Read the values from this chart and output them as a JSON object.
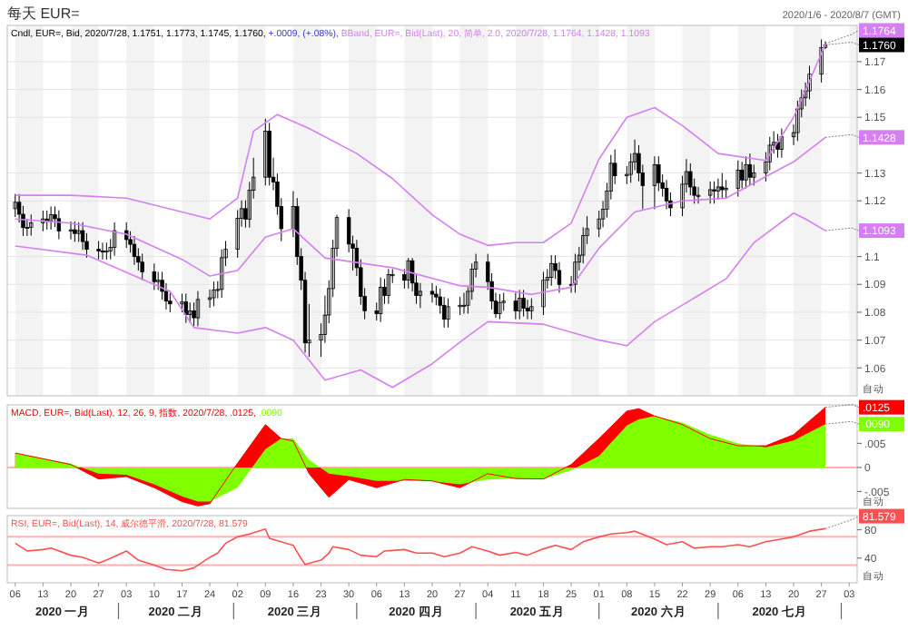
{
  "chart_data": [
    {
      "type": "candlestick",
      "title": "每天 EUR=",
      "subtitle": "2020/1/6 - 2020/8/7 (GMT)",
      "legend": "top left",
      "grid": true,
      "tick_labels": "y",
      "xlim": [
        "2020-01-04",
        "2020-08-05"
      ],
      "ylim": [
        1.05,
        1.183
      ],
      "yticks": [
        1.06,
        1.07,
        1.08,
        1.09,
        1.1,
        1.12,
        1.13,
        1.15,
        1.16,
        1.17
      ],
      "annotations": [
        "自动",
        "+.0009, (+.08%),",
        {
          "text": "1.1764",
          "x": "2020-07-28",
          "y": 1.1764
        },
        {
          "text": "1.1760",
          "x": "2020-07-28",
          "y": 1.176
        },
        {
          "text": "1.1428",
          "x": "2020-07-28",
          "y": 1.1428
        },
        {
          "text": "1.1093",
          "x": "2020-07-28",
          "y": 1.1093
        }
      ],
      "series": [
        {
          "name": "Cndl, EUR=, Bid, 2020/7/28, 1.1751, 1.1773, 1.1745, 1.1760,",
          "color": "#000000",
          "x": [
            "2020-01-06",
            "2020-01-07",
            "2020-01-08",
            "2020-01-09",
            "2020-01-10",
            "2020-01-13",
            "2020-01-14",
            "2020-01-15",
            "2020-01-16",
            "2020-01-17",
            "2020-01-20",
            "2020-01-21",
            "2020-01-22",
            "2020-01-23",
            "2020-01-24",
            "2020-01-27",
            "2020-01-28",
            "2020-01-29",
            "2020-01-30",
            "2020-01-31",
            "2020-02-03",
            "2020-02-04",
            "2020-02-05",
            "2020-02-06",
            "2020-02-07",
            "2020-02-10",
            "2020-02-11",
            "2020-02-12",
            "2020-02-13",
            "2020-02-14",
            "2020-02-17",
            "2020-02-18",
            "2020-02-19",
            "2020-02-20",
            "2020-02-21",
            "2020-02-24",
            "2020-02-25",
            "2020-02-26",
            "2020-02-27",
            "2020-02-28",
            "2020-03-02",
            "2020-03-03",
            "2020-03-04",
            "2020-03-05",
            "2020-03-06",
            "2020-03-09",
            "2020-03-10",
            "2020-03-11",
            "2020-03-12",
            "2020-03-13",
            "2020-03-16",
            "2020-03-17",
            "2020-03-18",
            "2020-03-19",
            "2020-03-20",
            "2020-03-23",
            "2020-03-24",
            "2020-03-25",
            "2020-03-26",
            "2020-03-27",
            "2020-03-30",
            "2020-03-31",
            "2020-04-01",
            "2020-04-02",
            "2020-04-03",
            "2020-04-06",
            "2020-04-07",
            "2020-04-08",
            "2020-04-09",
            "2020-04-10",
            "2020-04-13",
            "2020-04-14",
            "2020-04-15",
            "2020-04-16",
            "2020-04-17",
            "2020-04-20",
            "2020-04-21",
            "2020-04-22",
            "2020-04-23",
            "2020-04-24",
            "2020-04-27",
            "2020-04-28",
            "2020-04-29",
            "2020-04-30",
            "2020-05-01",
            "2020-05-04",
            "2020-05-05",
            "2020-05-06",
            "2020-05-07",
            "2020-05-08",
            "2020-05-11",
            "2020-05-12",
            "2020-05-13",
            "2020-05-14",
            "2020-05-15",
            "2020-05-18",
            "2020-05-19",
            "2020-05-20",
            "2020-05-21",
            "2020-05-22",
            "2020-05-25",
            "2020-05-26",
            "2020-05-27",
            "2020-05-28",
            "2020-05-29",
            "2020-06-01",
            "2020-06-02",
            "2020-06-03",
            "2020-06-04",
            "2020-06-05",
            "2020-06-08",
            "2020-06-09",
            "2020-06-10",
            "2020-06-11",
            "2020-06-12",
            "2020-06-15",
            "2020-06-16",
            "2020-06-17",
            "2020-06-18",
            "2020-06-19",
            "2020-06-22",
            "2020-06-23",
            "2020-06-24",
            "2020-06-25",
            "2020-06-26",
            "2020-06-29",
            "2020-06-30",
            "2020-07-01",
            "2020-07-02",
            "2020-07-03",
            "2020-07-06",
            "2020-07-07",
            "2020-07-08",
            "2020-07-09",
            "2020-07-10",
            "2020-07-13",
            "2020-07-14",
            "2020-07-15",
            "2020-07-16",
            "2020-07-17",
            "2020-07-20",
            "2020-07-21",
            "2020-07-22",
            "2020-07-23",
            "2020-07-24",
            "2020-07-27",
            "2020-07-28"
          ],
          "ohlc": [
            [
              1.1172,
              1.1225,
              1.1142,
              1.1195
            ],
            [
              1.1195,
              1.1225,
              1.1122,
              1.1152
            ],
            [
              1.1152,
              1.1182,
              1.1074,
              1.1104
            ],
            [
              1.1104,
              1.1135,
              1.1074,
              1.1105
            ],
            [
              1.1105,
              1.1151,
              1.1075,
              1.1121
            ],
            [
              1.1121,
              1.1165,
              1.1091,
              1.1135
            ],
            [
              1.1135,
              1.1165,
              1.1097,
              1.1127
            ],
            [
              1.1127,
              1.118,
              1.1097,
              1.115
            ],
            [
              1.115,
              1.118,
              1.1106,
              1.1136
            ],
            [
              1.1136,
              1.1166,
              1.1062,
              1.1092
            ],
            [
              1.1092,
              1.1126,
              1.1062,
              1.1096
            ],
            [
              1.1096,
              1.1126,
              1.1053,
              1.1083
            ],
            [
              1.1083,
              1.1123,
              1.1053,
              1.1093
            ],
            [
              1.1093,
              1.1123,
              1.1024,
              1.1054
            ],
            [
              1.1054,
              1.1084,
              1.0996,
              1.1026
            ],
            [
              1.1026,
              1.1056,
              1.099,
              1.102
            ],
            [
              1.102,
              1.105,
              1.0989,
              1.1019
            ],
            [
              1.1019,
              1.105,
              1.0989,
              1.102
            ],
            [
              1.102,
              1.1063,
              1.099,
              1.1033
            ],
            [
              1.1033,
              1.1123,
              1.1003,
              1.1093
            ],
            [
              1.1093,
              1.1123,
              1.1031,
              1.1061
            ],
            [
              1.1061,
              1.1091,
              1.1014,
              1.1044
            ],
            [
              1.1044,
              1.1074,
              1.097,
              1.1
            ],
            [
              1.1,
              1.103,
              1.095,
              1.098
            ],
            [
              1.098,
              1.101,
              1.0915,
              1.0945
            ],
            [
              1.0945,
              1.0975,
              1.088,
              1.091
            ],
            [
              1.091,
              1.0945,
              1.088,
              1.0915
            ],
            [
              1.0915,
              1.0945,
              1.0845,
              1.0875
            ],
            [
              1.0875,
              1.0905,
              1.081,
              1.084
            ],
            [
              1.084,
              1.087,
              1.08,
              1.083
            ],
            [
              1.083,
              1.0867,
              1.08,
              1.0837
            ],
            [
              1.0837,
              1.0867,
              1.0762,
              1.0792
            ],
            [
              1.0792,
              1.0835,
              1.0762,
              1.0805
            ],
            [
              1.0805,
              1.0835,
              1.075,
              1.078
            ],
            [
              1.078,
              1.0876,
              1.075,
              1.0846
            ],
            [
              1.0846,
              1.0882,
              1.0816,
              1.0852
            ],
            [
              1.0852,
              1.091,
              1.0822,
              1.088
            ],
            [
              1.088,
              1.0912,
              1.085,
              1.0882
            ],
            [
              1.0882,
              1.1026,
              1.0852,
              1.0996
            ],
            [
              1.0996,
              1.1056,
              1.0966,
              1.1026
            ],
            [
              1.1026,
              1.1167,
              1.0996,
              1.1137
            ],
            [
              1.1137,
              1.1202,
              1.1107,
              1.1172
            ],
            [
              1.1172,
              1.1202,
              1.1104,
              1.1134
            ],
            [
              1.1134,
              1.1268,
              1.1104,
              1.1238
            ],
            [
              1.1238,
              1.1355,
              1.1208,
              1.1285
            ],
            [
              1.1285,
              1.1495,
              1.1255,
              1.145
            ],
            [
              1.145,
              1.148,
              1.1255,
              1.1285
            ],
            [
              1.1285,
              1.1355,
              1.1238,
              1.1268
            ],
            [
              1.1268,
              1.1298,
              1.115,
              1.118
            ],
            [
              1.118,
              1.121,
              1.1055,
              1.11
            ],
            [
              1.11,
              1.1235,
              1.107,
              1.118
            ],
            [
              1.118,
              1.121,
              1.097,
              1.1
            ],
            [
              1.1,
              1.103,
              1.088,
              1.0915
            ],
            [
              1.0915,
              1.0945,
              1.0655,
              1.069
            ],
            [
              1.069,
              1.083,
              1.064,
              1.07
            ],
            [
              1.07,
              1.076,
              1.064,
              1.072
            ],
            [
              1.072,
              1.086,
              1.069,
              1.079
            ],
            [
              1.079,
              1.0915,
              1.076,
              1.0885
            ],
            [
              1.0885,
              1.106,
              1.0855,
              1.103
            ],
            [
              1.103,
              1.115,
              1.1,
              1.114
            ],
            [
              1.114,
              1.117,
              1.1015,
              1.1045
            ],
            [
              1.1045,
              1.1075,
              1.095,
              1.103
            ],
            [
              1.103,
              1.106,
              1.093,
              1.096
            ],
            [
              1.096,
              1.099,
              1.0827,
              1.0857
            ],
            [
              1.0857,
              1.0887,
              1.0775,
              1.0805
            ],
            [
              1.0805,
              1.0835,
              1.077,
              1.0795
            ],
            [
              1.0795,
              1.0925,
              1.0765,
              1.089
            ],
            [
              1.089,
              1.092,
              1.083,
              1.086
            ],
            [
              1.086,
              1.0955,
              1.083,
              1.0935
            ],
            [
              1.0935,
              1.0955,
              1.0905,
              1.0935
            ],
            [
              1.0935,
              1.0955,
              1.0885,
              1.0915
            ],
            [
              1.0915,
              1.0995,
              1.0885,
              1.0985
            ],
            [
              1.0985,
              1.0995,
              1.0875,
              1.0905
            ],
            [
              1.0905,
              1.0935,
              1.083,
              1.086
            ],
            [
              1.086,
              1.0905,
              1.0815,
              1.0875
            ],
            [
              1.0875,
              1.0905,
              1.0835,
              1.0865
            ],
            [
              1.0865,
              1.0895,
              1.0825,
              1.0855
            ],
            [
              1.0855,
              1.0885,
              1.0795,
              1.0825
            ],
            [
              1.0825,
              1.0855,
              1.0745,
              1.0775
            ],
            [
              1.0775,
              1.085,
              1.0745,
              1.082
            ],
            [
              1.082,
              1.0855,
              1.079,
              1.0825
            ],
            [
              1.0825,
              1.087,
              1.0795,
              1.0825
            ],
            [
              1.0825,
              1.089,
              1.0795,
              1.0875
            ],
            [
              1.0875,
              1.0975,
              1.0845,
              1.0955
            ],
            [
              1.0955,
              1.101,
              1.0925,
              1.098
            ],
            [
              1.098,
              1.101,
              1.088,
              1.091
            ],
            [
              1.091,
              1.094,
              1.081,
              1.084
            ],
            [
              1.084,
              1.087,
              1.078,
              1.0795
            ],
            [
              1.0795,
              1.0865,
              1.0775,
              1.0835
            ],
            [
              1.0835,
              1.087,
              1.0805,
              1.084
            ],
            [
              1.084,
              1.087,
              1.0775,
              1.0805
            ],
            [
              1.0805,
              1.088,
              1.0775,
              1.085
            ],
            [
              1.085,
              1.088,
              1.0785,
              1.0815
            ],
            [
              1.0815,
              1.0845,
              1.0775,
              1.0805
            ],
            [
              1.0805,
              1.085,
              1.0775,
              1.082
            ],
            [
              1.082,
              1.0945,
              1.079,
              1.0915
            ],
            [
              1.0915,
              1.0955,
              1.0885,
              1.0925
            ],
            [
              1.0925,
              1.1005,
              1.0895,
              1.0975
            ],
            [
              1.0975,
              1.1005,
              1.092,
              1.095
            ],
            [
              1.095,
              1.098,
              1.087,
              1.09
            ],
            [
              1.09,
              1.093,
              1.087,
              1.09
            ],
            [
              1.09,
              1.101,
              1.087,
              1.098
            ],
            [
              1.098,
              1.1035,
              1.095,
              1.1005
            ],
            [
              1.1005,
              1.1105,
              1.0975,
              1.1075
            ],
            [
              1.1075,
              1.1145,
              1.1045,
              1.11
            ],
            [
              1.11,
              1.1165,
              1.107,
              1.1135
            ],
            [
              1.1135,
              1.12,
              1.1105,
              1.117
            ],
            [
              1.117,
              1.1265,
              1.114,
              1.1235
            ],
            [
              1.1235,
              1.1365,
              1.1205,
              1.1335
            ],
            [
              1.1335,
              1.1385,
              1.126,
              1.129
            ],
            [
              1.129,
              1.1325,
              1.126,
              1.1295
            ],
            [
              1.1295,
              1.137,
              1.1265,
              1.134
            ],
            [
              1.134,
              1.142,
              1.131,
              1.137
            ],
            [
              1.137,
              1.14,
              1.127,
              1.13
            ],
            [
              1.13,
              1.133,
              1.117,
              1.1255
            ],
            [
              1.1255,
              1.136,
              1.117,
              1.133
            ],
            [
              1.133,
              1.136,
              1.1235,
              1.1265
            ],
            [
              1.1265,
              1.1295,
              1.1215,
              1.1245
            ],
            [
              1.1245,
              1.1275,
              1.117,
              1.12
            ],
            [
              1.12,
              1.123,
              1.1145,
              1.1175
            ],
            [
              1.1175,
              1.129,
              1.1145,
              1.126
            ],
            [
              1.126,
              1.135,
              1.123,
              1.1305
            ],
            [
              1.1305,
              1.1335,
              1.122,
              1.125
            ],
            [
              1.125,
              1.128,
              1.119,
              1.122
            ],
            [
              1.122,
              1.125,
              1.119,
              1.122
            ],
            [
              1.122,
              1.127,
              1.119,
              1.124
            ],
            [
              1.124,
              1.127,
              1.119,
              1.1235
            ],
            [
              1.1235,
              1.128,
              1.1205,
              1.125
            ],
            [
              1.125,
              1.13,
              1.121,
              1.124
            ],
            [
              1.124,
              1.1275,
              1.121,
              1.1245
            ],
            [
              1.1245,
              1.1345,
              1.1215,
              1.131
            ],
            [
              1.131,
              1.134,
              1.1245,
              1.1275
            ],
            [
              1.1275,
              1.136,
              1.1245,
              1.133
            ],
            [
              1.133,
              1.137,
              1.1255,
              1.1285
            ],
            [
              1.1285,
              1.133,
              1.1255,
              1.13
            ],
            [
              1.13,
              1.1375,
              1.127,
              1.134
            ],
            [
              1.134,
              1.143,
              1.131,
              1.14
            ],
            [
              1.14,
              1.145,
              1.137,
              1.141
            ],
            [
              1.141,
              1.144,
              1.1355,
              1.1385
            ],
            [
              1.1385,
              1.146,
              1.1355,
              1.143
            ],
            [
              1.143,
              1.1475,
              1.14,
              1.1445
            ],
            [
              1.1445,
              1.156,
              1.1415,
              1.153
            ],
            [
              1.153,
              1.16,
              1.15,
              1.157
            ],
            [
              1.157,
              1.1625,
              1.154,
              1.1595
            ],
            [
              1.1595,
              1.1685,
              1.1565,
              1.1655
            ],
            [
              1.1655,
              1.178,
              1.1625,
              1.175
            ],
            [
              1.1751,
              1.1773,
              1.1745,
              1.176
            ]
          ]
        },
        {
          "type": "line",
          "name": "BBand, EUR=, Bid(Last), 20, 简单, 2.0, 2020/7/28, 1.1764, 1.1428, 1.1093",
          "color": "#d580f0",
          "x": [
            "2020-01-06",
            "2020-01-20",
            "2020-02-03",
            "2020-02-17",
            "2020-02-24",
            "2020-03-02",
            "2020-03-06",
            "2020-03-12",
            "2020-03-20",
            "2020-04-01",
            "2020-04-10",
            "2020-04-20",
            "2020-04-27",
            "2020-05-04",
            "2020-05-11",
            "2020-05-18",
            "2020-05-25",
            "2020-06-01",
            "2020-06-08",
            "2020-06-15",
            "2020-06-22",
            "2020-07-01",
            "2020-07-13",
            "2020-07-20",
            "2020-07-24",
            "2020-07-28"
          ],
          "values": [
            1.122,
            1.122,
            1.121,
            1.116,
            1.1135,
            1.121,
            1.145,
            1.151,
            1.146,
            1.137,
            1.128,
            1.115,
            1.108,
            1.104,
            1.105,
            1.105,
            1.112,
            1.135,
            1.15,
            1.1535,
            1.147,
            1.137,
            1.1345,
            1.15,
            1.163,
            1.1764
          ]
        },
        {
          "type": "line",
          "color": "#d580f0",
          "x": [
            "2020-01-06",
            "2020-01-20",
            "2020-02-03",
            "2020-02-17",
            "2020-02-24",
            "2020-03-02",
            "2020-03-09",
            "2020-03-16",
            "2020-03-24",
            "2020-04-10",
            "2020-04-27",
            "2020-05-04",
            "2020-05-15",
            "2020-05-25",
            "2020-06-01",
            "2020-06-10",
            "2020-06-22",
            "2020-07-03",
            "2020-07-13",
            "2020-07-20",
            "2020-07-28"
          ],
          "values": [
            1.1135,
            1.112,
            1.108,
            1.099,
            1.093,
            1.095,
            1.107,
            1.11,
            1.0995,
            1.096,
            1.0895,
            1.089,
            1.0864,
            1.089,
            1.103,
            1.116,
            1.12,
            1.121,
            1.1287,
            1.134,
            1.1428
          ]
        },
        {
          "type": "line",
          "color": "#d580f0",
          "x": [
            "2020-01-06",
            "2020-01-24",
            "2020-02-14",
            "2020-02-20",
            "2020-03-02",
            "2020-03-09",
            "2020-03-16",
            "2020-03-24",
            "2020-04-02",
            "2020-04-10",
            "2020-04-20",
            "2020-04-27",
            "2020-05-04",
            "2020-05-18",
            "2020-06-01",
            "2020-06-08",
            "2020-06-15",
            "2020-07-03",
            "2020-07-10",
            "2020-07-20",
            "2020-07-23",
            "2020-07-28"
          ],
          "values": [
            1.1038,
            1.1005,
            1.0875,
            1.0745,
            1.0725,
            1.0745,
            1.07,
            1.0556,
            1.0593,
            1.053,
            1.0615,
            1.0693,
            1.0766,
            1.0757,
            1.07,
            1.068,
            1.0766,
            1.092,
            1.105,
            1.1156,
            1.1135,
            1.1093
          ]
        }
      ]
    },
    {
      "type": "area",
      "legend": "top left",
      "tick_labels": "y",
      "xlim": [
        "2020-01-04",
        "2020-08-05"
      ],
      "ylim": [
        -0.0085,
        0.013
      ],
      "yticks": [
        {
          "value": 0.005,
          "label": ".005"
        },
        {
          "value": 0,
          "label": "0"
        },
        {
          "value": -0.005,
          "label": "-.005"
        }
      ],
      "ref_lines": [
        {
          "axis": "y",
          "value": 0,
          "color": "#ffb0b0"
        }
      ],
      "annotations": [
        "自动",
        {
          "text": ".0125",
          "x": "2020-07-28",
          "y": 0.0125
        },
        {
          "text": ".0090",
          "x": "2020-07-28",
          "y": 0.009
        }
      ],
      "x": [
        "2020-01-06",
        "2020-01-20",
        "2020-01-27",
        "2020-02-03",
        "2020-02-10",
        "2020-02-17",
        "2020-02-21",
        "2020-02-24",
        "2020-03-02",
        "2020-03-09",
        "2020-03-13",
        "2020-03-16",
        "2020-03-20",
        "2020-03-25",
        "2020-03-30",
        "2020-04-06",
        "2020-04-13",
        "2020-04-20",
        "2020-04-27",
        "2020-05-04",
        "2020-05-11",
        "2020-05-18",
        "2020-05-25",
        "2020-06-01",
        "2020-06-08",
        "2020-06-11",
        "2020-06-15",
        "2020-06-22",
        "2020-06-29",
        "2020-07-06",
        "2020-07-13",
        "2020-07-20",
        "2020-07-28"
      ],
      "series": [
        {
          "name": "MACD, EUR=, Bid(Last), 12, 26, 9, 指数, 2020/7/28, .0125,",
          "color": "#ff0000",
          "values": [
            0.003,
            0.0006,
            -0.0024,
            -0.0019,
            -0.0042,
            -0.0071,
            -0.008,
            -0.0075,
            0.0009,
            0.0089,
            0.006,
            0.0055,
            -0.0013,
            -0.0062,
            -0.0025,
            -0.0042,
            -0.0025,
            -0.0028,
            -0.0042,
            -0.0013,
            -0.0023,
            -0.0024,
            0.0006,
            0.006,
            0.0117,
            0.0122,
            0.0107,
            0.0089,
            0.006,
            0.0045,
            0.0045,
            0.0068,
            0.0125
          ]
        },
        {
          "name": ".0090",
          "color": "#80ff00",
          "values": [
            0.003,
            0.0008,
            -0.0013,
            -0.0015,
            -0.0035,
            -0.006,
            -0.0071,
            -0.0071,
            -0.0042,
            0.0038,
            0.006,
            0.006,
            0.0016,
            -0.0013,
            -0.0018,
            -0.0028,
            -0.0028,
            -0.0029,
            -0.0035,
            -0.0025,
            -0.0023,
            -0.0024,
            -0.0006,
            0.0024,
            0.0087,
            0.01,
            0.0107,
            0.0093,
            0.0068,
            0.005,
            0.0042,
            0.0056,
            0.009
          ]
        }
      ]
    },
    {
      "type": "line",
      "legend": "top left",
      "xlim": [
        "2020-01-04",
        "2020-08-05"
      ],
      "ylim": [
        5,
        100
      ],
      "yticks": [
        40,
        80
      ],
      "xticks": [
        {
          "value": "2020-01-06",
          "label": "06"
        },
        {
          "value": "2020-01-13",
          "label": "13"
        },
        {
          "value": "2020-01-20",
          "label": "20"
        },
        {
          "value": "2020-01-27",
          "label": "27"
        },
        {
          "value": "2020-02-03",
          "label": "03"
        },
        {
          "value": "2020-02-10",
          "label": "10"
        },
        {
          "value": "2020-02-17",
          "label": "17"
        },
        {
          "value": "2020-02-24",
          "label": "24"
        },
        {
          "value": "2020-03-02",
          "label": "02"
        },
        {
          "value": "2020-03-09",
          "label": "09"
        },
        {
          "value": "2020-03-16",
          "label": "16"
        },
        {
          "value": "2020-03-23",
          "label": "23"
        },
        {
          "value": "2020-03-30",
          "label": "30"
        },
        {
          "value": "2020-04-06",
          "label": "06"
        },
        {
          "value": "2020-04-13",
          "label": "13"
        },
        {
          "value": "2020-04-20",
          "label": "20"
        },
        {
          "value": "2020-04-27",
          "label": "27"
        },
        {
          "value": "2020-05-04",
          "label": "04"
        },
        {
          "value": "2020-05-11",
          "label": "11"
        },
        {
          "value": "2020-05-18",
          "label": "18"
        },
        {
          "value": "2020-05-25",
          "label": "25"
        },
        {
          "value": "2020-06-01",
          "label": "01"
        },
        {
          "value": "2020-06-08",
          "label": "08"
        },
        {
          "value": "2020-06-15",
          "label": "15"
        },
        {
          "value": "2020-06-22",
          "label": "22"
        },
        {
          "value": "2020-06-29",
          "label": "29"
        },
        {
          "value": "2020-07-06",
          "label": "06"
        },
        {
          "value": "2020-07-13",
          "label": "13"
        },
        {
          "value": "2020-07-20",
          "label": "20"
        },
        {
          "value": "2020-07-27",
          "label": "27"
        },
        {
          "value": "2020-08-03",
          "label": "03"
        }
      ],
      "ref_lines": [
        {
          "axis": "y",
          "value": 70,
          "color": "#ffb0b0"
        },
        {
          "axis": "y",
          "value": 30,
          "color": "#ffb0b0"
        }
      ],
      "annotations": [
        "自动",
        "2020 一月",
        "2020 二月",
        "2020 三月",
        "2020 四月",
        "2020 五月",
        "2020 六月",
        "2020 七月",
        {
          "text": "81.579",
          "x": "2020-07-28",
          "y": 81.579
        }
      ],
      "series": [
        {
          "name": "RSI, EUR=, Bid(Last), 14, 威尔德平滑, 2020/7/28, 81.579",
          "color": "#ff5050",
          "x": [
            "2020-01-06",
            "2020-01-09",
            "2020-01-13",
            "2020-01-15",
            "2020-01-20",
            "2020-01-23",
            "2020-01-27",
            "2020-01-29",
            "2020-02-03",
            "2020-02-06",
            "2020-02-10",
            "2020-02-13",
            "2020-02-17",
            "2020-02-20",
            "2020-02-24",
            "2020-02-26",
            "2020-02-28",
            "2020-03-02",
            "2020-03-05",
            "2020-03-09",
            "2020-03-10",
            "2020-03-16",
            "2020-03-18",
            "2020-03-19",
            "2020-03-23",
            "2020-03-25",
            "2020-03-26",
            "2020-03-30",
            "2020-04-02",
            "2020-04-06",
            "2020-04-08",
            "2020-04-13",
            "2020-04-16",
            "2020-04-20",
            "2020-04-23",
            "2020-04-27",
            "2020-04-30",
            "2020-05-04",
            "2020-05-07",
            "2020-05-11",
            "2020-05-14",
            "2020-05-18",
            "2020-05-21",
            "2020-05-25",
            "2020-05-28",
            "2020-06-01",
            "2020-06-04",
            "2020-06-08",
            "2020-06-10",
            "2020-06-15",
            "2020-06-18",
            "2020-06-22",
            "2020-06-25",
            "2020-06-29",
            "2020-07-02",
            "2020-07-06",
            "2020-07-09",
            "2020-07-13",
            "2020-07-16",
            "2020-07-20",
            "2020-07-24",
            "2020-07-28"
          ],
          "values": [
            61,
            50,
            52,
            54,
            44,
            41,
            33,
            37,
            50,
            37,
            30,
            24,
            22,
            26,
            41,
            47,
            61,
            70,
            74,
            81,
            68,
            58,
            39,
            31,
            37,
            47,
            56,
            52,
            44,
            42,
            50,
            52,
            47,
            47,
            42,
            47,
            56,
            50,
            44,
            48,
            44,
            53,
            58,
            52,
            63,
            70,
            74,
            76,
            78,
            67,
            59,
            63,
            54,
            56,
            56,
            59,
            56,
            63,
            66,
            70,
            78,
            81.579
          ]
        }
      ]
    }
  ]
}
